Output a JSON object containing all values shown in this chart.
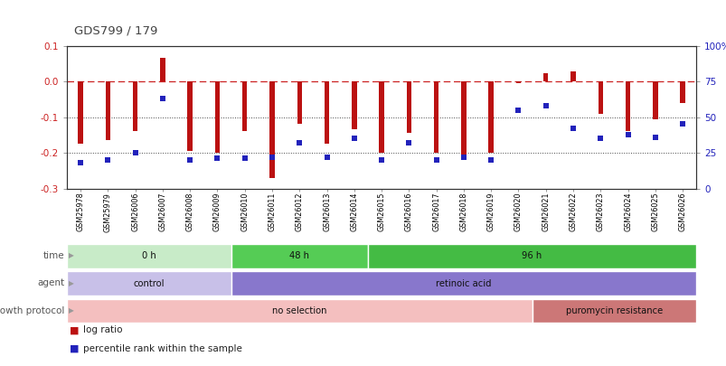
{
  "title": "GDS799 / 179",
  "samples": [
    "GSM25978",
    "GSM25979",
    "GSM26006",
    "GSM26007",
    "GSM26008",
    "GSM26009",
    "GSM26010",
    "GSM26011",
    "GSM26012",
    "GSM26013",
    "GSM26014",
    "GSM26015",
    "GSM26016",
    "GSM26017",
    "GSM26018",
    "GSM26019",
    "GSM26020",
    "GSM26021",
    "GSM26022",
    "GSM26023",
    "GSM26024",
    "GSM26025",
    "GSM26026"
  ],
  "log_ratio": [
    -0.175,
    -0.165,
    -0.14,
    0.065,
    -0.195,
    -0.2,
    -0.14,
    -0.27,
    -0.12,
    -0.175,
    -0.135,
    -0.2,
    -0.145,
    -0.2,
    -0.215,
    -0.2,
    -0.005,
    0.022,
    0.027,
    -0.09,
    -0.14,
    -0.105,
    -0.06
  ],
  "percentile": [
    18,
    20,
    25,
    63,
    20,
    21,
    21,
    22,
    32,
    22,
    35,
    20,
    32,
    20,
    22,
    20,
    55,
    58,
    42,
    35,
    38,
    36,
    45
  ],
  "bar_color": "#bb1111",
  "dot_color": "#2222bb",
  "ylim_left": [
    -0.3,
    0.1
  ],
  "ylim_right": [
    0,
    100
  ],
  "yticks_left": [
    0.1,
    0.0,
    -0.1,
    -0.2,
    -0.3
  ],
  "yticks_right": [
    100,
    75,
    50,
    25,
    0
  ],
  "hline_y": 0.0,
  "dotlines": [
    -0.1,
    -0.2
  ],
  "time_groups": [
    {
      "label": "0 h",
      "start": 0,
      "end": 5,
      "color": "#c8ebc8"
    },
    {
      "label": "48 h",
      "start": 6,
      "end": 10,
      "color": "#55cc55"
    },
    {
      "label": "96 h",
      "start": 11,
      "end": 22,
      "color": "#44bb44"
    }
  ],
  "agent_groups": [
    {
      "label": "control",
      "start": 0,
      "end": 5,
      "color": "#c8c0e8"
    },
    {
      "label": "retinoic acid",
      "start": 6,
      "end": 22,
      "color": "#8877cc"
    }
  ],
  "growth_groups": [
    {
      "label": "no selection",
      "start": 0,
      "end": 16,
      "color": "#f4bfbf"
    },
    {
      "label": "puromycin resistance",
      "start": 17,
      "end": 22,
      "color": "#cc7777"
    }
  ],
  "row_labels": [
    "time",
    "agent",
    "growth protocol"
  ],
  "legend_items": [
    {
      "label": "log ratio",
      "color": "#bb1111"
    },
    {
      "label": "percentile rank within the sample",
      "color": "#2222bb"
    }
  ]
}
